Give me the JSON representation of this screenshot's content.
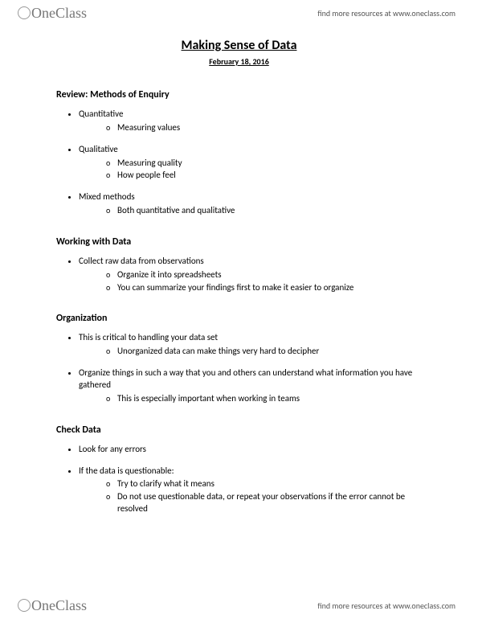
{
  "brand": "OneClass",
  "header_link": "find more resources at www.oneclass.com",
  "title": "Making Sense of Data",
  "date": "February 18, 2016",
  "sections": [
    {
      "heading": "Review: Methods of Enquiry",
      "items": [
        {
          "text": "Quantitative",
          "sub": [
            "Measuring values"
          ]
        },
        {
          "text": "Qualitative",
          "sub": [
            "Measuring quality",
            "How people feel"
          ]
        },
        {
          "text": "Mixed methods",
          "sub": [
            "Both quantitative and qualitative"
          ]
        }
      ]
    },
    {
      "heading": "Working with Data",
      "items": [
        {
          "text": "Collect raw data from observations",
          "sub": [
            "Organize it into spreadsheets",
            "You can summarize your findings first to make it easier to organize"
          ]
        }
      ]
    },
    {
      "heading": "Organization",
      "items": [
        {
          "text": "This is critical to handling your data set",
          "sub": [
            "Unorganized data can make things very hard to decipher"
          ]
        },
        {
          "text": "Organize things in such a way that you and others can understand what information you have gathered",
          "sub": [
            "This is especially important when working in teams"
          ]
        }
      ]
    },
    {
      "heading": "Check Data",
      "items": [
        {
          "text": "Look for any errors",
          "sub": []
        },
        {
          "text": "If the data is questionable:",
          "sub": [
            "Try to clarify what it means",
            "Do not use questionable data, or repeat your observations if the error cannot be resolved"
          ]
        }
      ]
    }
  ]
}
